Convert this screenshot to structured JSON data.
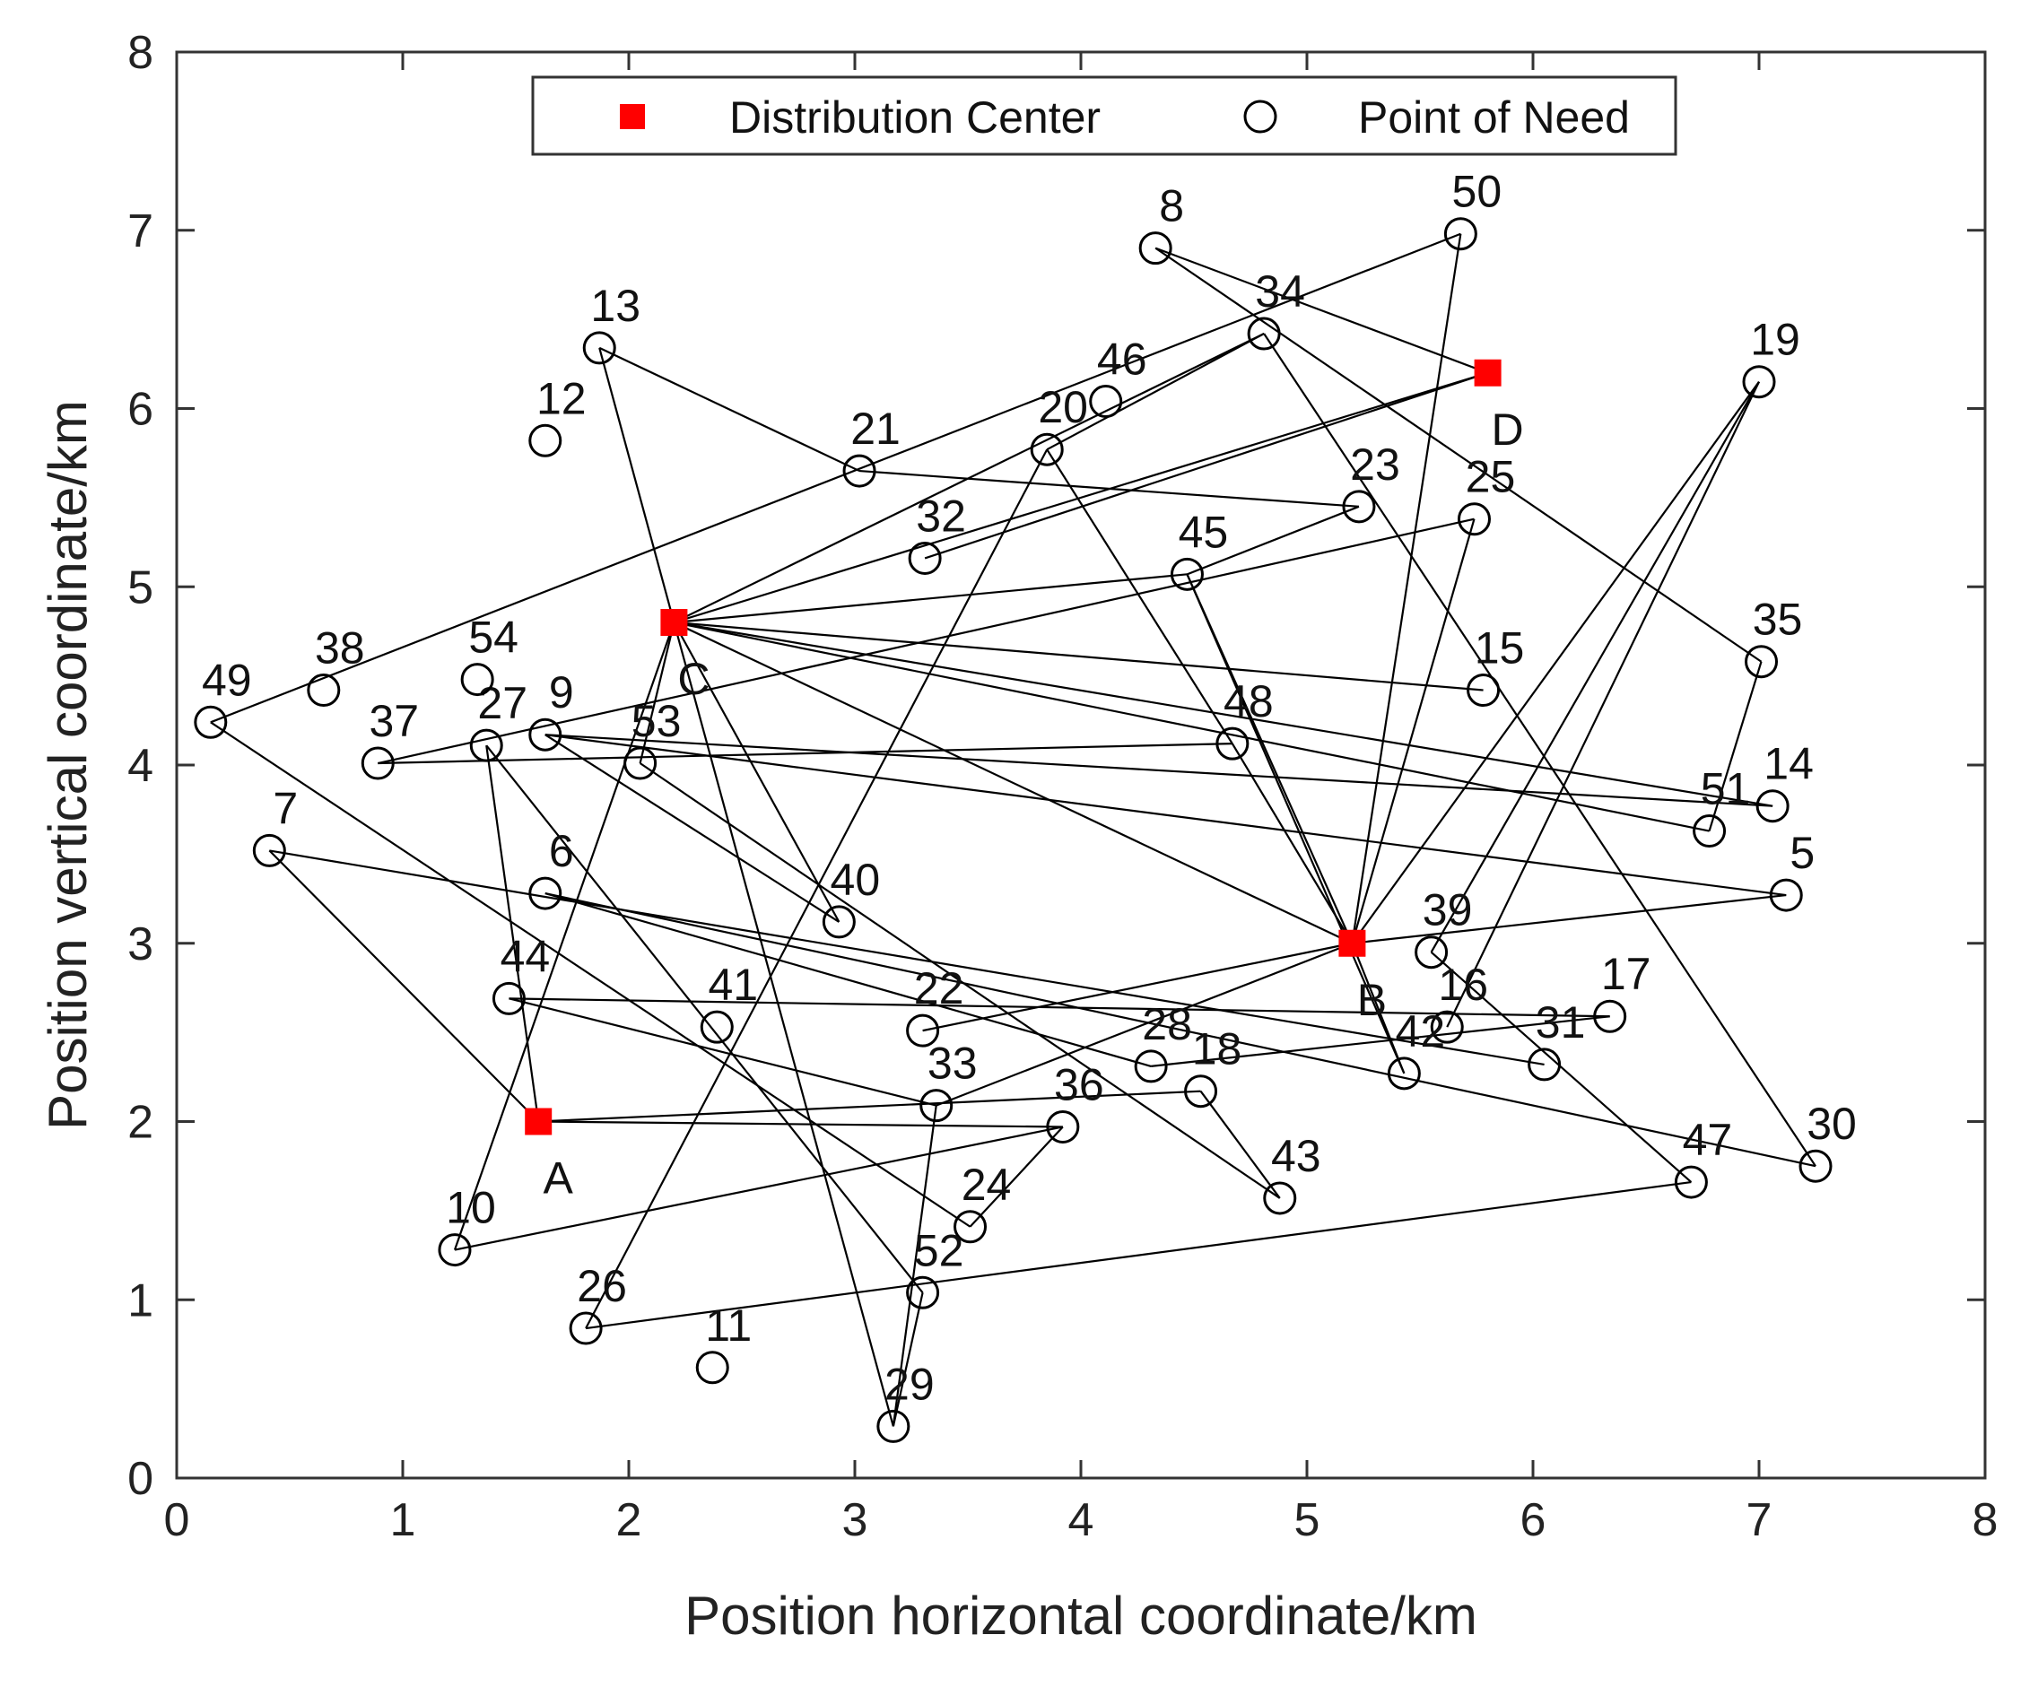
{
  "chart_data": {
    "type": "scatter",
    "title": "",
    "xlabel": "Position horizontal coordinate/km",
    "ylabel": "Position vertical coordinate/km",
    "xlim": [
      0,
      8
    ],
    "ylim": [
      0,
      8
    ],
    "xticks": [
      "0",
      "1",
      "2",
      "3",
      "4",
      "5",
      "6",
      "7",
      "8"
    ],
    "yticks": [
      "0",
      "1",
      "2",
      "3",
      "4",
      "5",
      "6",
      "7",
      "8"
    ],
    "grid": false,
    "legend": {
      "position": "top-center",
      "entries": [
        "Distribution Center",
        "Point of Need"
      ]
    },
    "colors": {
      "center": "#ff0000",
      "point": "#000000",
      "route": "#000000"
    },
    "centers": [
      {
        "id": "A",
        "x": 1.6,
        "y": 2.0
      },
      {
        "id": "B",
        "x": 5.2,
        "y": 3.0
      },
      {
        "id": "C",
        "x": 2.2,
        "y": 4.8
      },
      {
        "id": "D",
        "x": 5.8,
        "y": 6.2
      }
    ],
    "points": [
      {
        "id": "5",
        "x": 7.12,
        "y": 3.27
      },
      {
        "id": "6",
        "x": 1.63,
        "y": 3.28
      },
      {
        "id": "7",
        "x": 0.41,
        "y": 3.52
      },
      {
        "id": "8",
        "x": 4.33,
        "y": 6.9
      },
      {
        "id": "9",
        "x": 1.63,
        "y": 4.17
      },
      {
        "id": "10",
        "x": 1.23,
        "y": 1.28
      },
      {
        "id": "11",
        "x": 2.37,
        "y": 0.62
      },
      {
        "id": "12",
        "x": 1.63,
        "y": 5.82
      },
      {
        "id": "13",
        "x": 1.87,
        "y": 6.34
      },
      {
        "id": "14",
        "x": 7.06,
        "y": 3.77
      },
      {
        "id": "15",
        "x": 5.78,
        "y": 4.42
      },
      {
        "id": "16",
        "x": 5.62,
        "y": 2.53
      },
      {
        "id": "17",
        "x": 6.34,
        "y": 2.59
      },
      {
        "id": "18",
        "x": 4.53,
        "y": 2.17
      },
      {
        "id": "19",
        "x": 7.0,
        "y": 6.15
      },
      {
        "id": "20",
        "x": 3.85,
        "y": 5.77
      },
      {
        "id": "21",
        "x": 3.02,
        "y": 5.65
      },
      {
        "id": "22",
        "x": 3.3,
        "y": 2.51
      },
      {
        "id": "23",
        "x": 5.23,
        "y": 5.45
      },
      {
        "id": "24",
        "x": 3.51,
        "y": 1.41
      },
      {
        "id": "25",
        "x": 5.74,
        "y": 5.38
      },
      {
        "id": "26",
        "x": 1.81,
        "y": 0.84
      },
      {
        "id": "27",
        "x": 1.37,
        "y": 4.11
      },
      {
        "id": "28",
        "x": 4.31,
        "y": 2.31
      },
      {
        "id": "29",
        "x": 3.17,
        "y": 0.29
      },
      {
        "id": "30",
        "x": 7.25,
        "y": 1.75
      },
      {
        "id": "31",
        "x": 6.05,
        "y": 2.32
      },
      {
        "id": "32",
        "x": 3.31,
        "y": 5.16
      },
      {
        "id": "33",
        "x": 3.36,
        "y": 2.09
      },
      {
        "id": "34",
        "x": 4.81,
        "y": 6.42
      },
      {
        "id": "35",
        "x": 7.01,
        "y": 4.58
      },
      {
        "id": "36",
        "x": 3.92,
        "y": 1.97
      },
      {
        "id": "37",
        "x": 0.89,
        "y": 4.01
      },
      {
        "id": "38",
        "x": 0.65,
        "y": 4.42
      },
      {
        "id": "39",
        "x": 5.55,
        "y": 2.95
      },
      {
        "id": "40",
        "x": 2.93,
        "y": 3.12
      },
      {
        "id": "41",
        "x": 2.39,
        "y": 2.53
      },
      {
        "id": "42",
        "x": 5.43,
        "y": 2.27
      },
      {
        "id": "43",
        "x": 4.88,
        "y": 1.57
      },
      {
        "id": "44",
        "x": 1.47,
        "y": 2.69
      },
      {
        "id": "45",
        "x": 4.47,
        "y": 5.07
      },
      {
        "id": "46",
        "x": 4.11,
        "y": 6.04
      },
      {
        "id": "47",
        "x": 6.7,
        "y": 1.66
      },
      {
        "id": "48",
        "x": 4.67,
        "y": 4.12
      },
      {
        "id": "49",
        "x": 0.15,
        "y": 4.24
      },
      {
        "id": "50",
        "x": 5.68,
        "y": 6.98
      },
      {
        "id": "51",
        "x": 6.78,
        "y": 3.63
      },
      {
        "id": "52",
        "x": 3.3,
        "y": 1.04
      },
      {
        "id": "53",
        "x": 2.05,
        "y": 4.01
      },
      {
        "id": "54",
        "x": 1.33,
        "y": 4.48
      }
    ],
    "routes": [
      [
        "C",
        "13"
      ],
      [
        "13",
        "21"
      ],
      [
        "21",
        "23"
      ],
      [
        "23",
        "45"
      ],
      [
        "45",
        "C"
      ],
      [
        "C",
        "D"
      ],
      [
        "32",
        "D"
      ],
      [
        "D",
        "8"
      ],
      [
        "8",
        "35"
      ],
      [
        "35",
        "51"
      ],
      [
        "51",
        "C"
      ],
      [
        "C",
        "15"
      ],
      [
        "C",
        "14"
      ],
      [
        "C",
        "B"
      ],
      [
        "C",
        "34"
      ],
      [
        "34",
        "20"
      ],
      [
        "20",
        "26"
      ],
      [
        "20",
        "48"
      ],
      [
        "34",
        "30"
      ],
      [
        "49",
        "50"
      ],
      [
        "50",
        "B"
      ],
      [
        "37",
        "25"
      ],
      [
        "25",
        "B"
      ],
      [
        "37",
        "48"
      ],
      [
        "48",
        "B"
      ],
      [
        "B",
        "19"
      ],
      [
        "19",
        "16"
      ],
      [
        "19",
        "39"
      ],
      [
        "B",
        "45"
      ],
      [
        "45",
        "42"
      ],
      [
        "B",
        "22"
      ],
      [
        "B",
        "33"
      ],
      [
        "33",
        "44"
      ],
      [
        "44",
        "17"
      ],
      [
        "33",
        "29"
      ],
      [
        "29",
        "C"
      ],
      [
        "C",
        "40"
      ],
      [
        "40",
        "9"
      ],
      [
        "9",
        "5"
      ],
      [
        "5",
        "B"
      ],
      [
        "C",
        "10"
      ],
      [
        "A",
        "27"
      ],
      [
        "27",
        "52"
      ],
      [
        "A",
        "7"
      ],
      [
        "7",
        "31"
      ],
      [
        "A",
        "18"
      ],
      [
        "A",
        "36"
      ],
      [
        "36",
        "10"
      ],
      [
        "36",
        "24"
      ],
      [
        "24",
        "49"
      ],
      [
        "6",
        "30"
      ],
      [
        "6",
        "28"
      ],
      [
        "28",
        "17"
      ],
      [
        "18",
        "43"
      ],
      [
        "43",
        "53"
      ],
      [
        "26",
        "47"
      ],
      [
        "47",
        "39"
      ],
      [
        "B",
        "42"
      ],
      [
        "C",
        "53"
      ],
      [
        "52",
        "29"
      ],
      [
        "9",
        "14"
      ]
    ]
  }
}
